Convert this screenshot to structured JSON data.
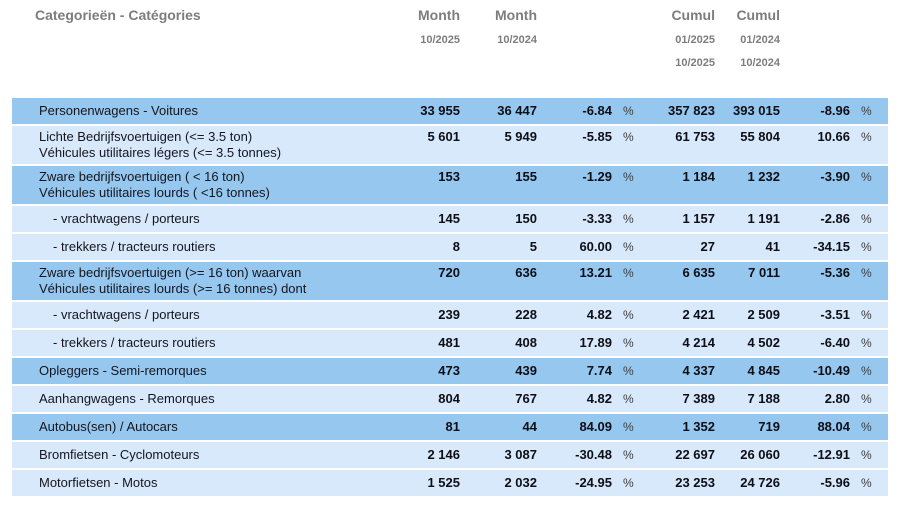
{
  "header": {
    "category_label": "Categorieën - Catégories",
    "columns": [
      {
        "title": "Month",
        "dates": [
          "10/2025"
        ]
      },
      {
        "title": "Month",
        "dates": [
          "10/2024"
        ]
      },
      {
        "title": "Cumul",
        "dates": [
          "01/2025",
          "10/2025"
        ]
      },
      {
        "title": "Cumul",
        "dates": [
          "01/2024",
          "10/2024"
        ]
      }
    ]
  },
  "percent_sign": "%",
  "colors": {
    "row_dark": "#96c7ef",
    "row_light": "#d8e9fb",
    "header_text": "#7d7d7d",
    "body_text": "#15151d"
  },
  "rows": [
    {
      "label1": "Personenwagens - Voitures",
      "label2": "",
      "indent": false,
      "shade": "dark",
      "month_cur": "33 955",
      "month_prev": "36 447",
      "month_pct": "-6.84",
      "cumul_cur": "357 823",
      "cumul_prev": "393 015",
      "cumul_pct": "-8.96"
    },
    {
      "label1": "Lichte Bedrijfsvoertuigen (<= 3.5 ton)",
      "label2": "Véhicules utilitaires légers (<= 3.5 tonnes)",
      "indent": false,
      "shade": "light",
      "month_cur": "5 601",
      "month_prev": "5 949",
      "month_pct": "-5.85",
      "cumul_cur": "61 753",
      "cumul_prev": "55 804",
      "cumul_pct": "10.66"
    },
    {
      "label1": "Zware bedrijfsvoertuigen ( < 16 ton)",
      "label2": "Véhicules utilitaires lourds ( <16 tonnes)",
      "indent": false,
      "shade": "dark",
      "month_cur": "153",
      "month_prev": "155",
      "month_pct": "-1.29",
      "cumul_cur": "1 184",
      "cumul_prev": "1 232",
      "cumul_pct": "-3.90"
    },
    {
      "label1": "- vrachtwagens / porteurs",
      "label2": "",
      "indent": true,
      "shade": "light",
      "month_cur": "145",
      "month_prev": "150",
      "month_pct": "-3.33",
      "cumul_cur": "1 157",
      "cumul_prev": "1 191",
      "cumul_pct": "-2.86"
    },
    {
      "label1": "- trekkers / tracteurs routiers",
      "label2": "",
      "indent": true,
      "shade": "light",
      "month_cur": "8",
      "month_prev": "5",
      "month_pct": "60.00",
      "cumul_cur": "27",
      "cumul_prev": "41",
      "cumul_pct": "-34.15"
    },
    {
      "label1": "Zware bedrijfsvoertuigen (>= 16 ton) waarvan",
      "label2": "Véhicules utilitaires lourds (>= 16 tonnes) dont",
      "indent": false,
      "shade": "dark",
      "month_cur": "720",
      "month_prev": "636",
      "month_pct": "13.21",
      "cumul_cur": "6 635",
      "cumul_prev": "7 011",
      "cumul_pct": "-5.36"
    },
    {
      "label1": "- vrachtwagens / porteurs",
      "label2": "",
      "indent": true,
      "shade": "light",
      "month_cur": "239",
      "month_prev": "228",
      "month_pct": "4.82",
      "cumul_cur": "2 421",
      "cumul_prev": "2 509",
      "cumul_pct": "-3.51"
    },
    {
      "label1": "- trekkers / tracteurs routiers",
      "label2": "",
      "indent": true,
      "shade": "light",
      "month_cur": "481",
      "month_prev": "408",
      "month_pct": "17.89",
      "cumul_cur": "4 214",
      "cumul_prev": "4 502",
      "cumul_pct": "-6.40"
    },
    {
      "label1": "Opleggers - Semi-remorques",
      "label2": "",
      "indent": false,
      "shade": "dark",
      "month_cur": "473",
      "month_prev": "439",
      "month_pct": "7.74",
      "cumul_cur": "4 337",
      "cumul_prev": "4 845",
      "cumul_pct": "-10.49"
    },
    {
      "label1": "Aanhangwagens - Remorques",
      "label2": "",
      "indent": false,
      "shade": "light",
      "month_cur": "804",
      "month_prev": "767",
      "month_pct": "4.82",
      "cumul_cur": "7 389",
      "cumul_prev": "7 188",
      "cumul_pct": "2.80"
    },
    {
      "label1": "Autobus(sen) / Autocars",
      "label2": "",
      "indent": false,
      "shade": "dark",
      "month_cur": "81",
      "month_prev": "44",
      "month_pct": "84.09",
      "cumul_cur": "1 352",
      "cumul_prev": "719",
      "cumul_pct": "88.04"
    },
    {
      "label1": "Bromfietsen - Cyclomoteurs",
      "label2": "",
      "indent": false,
      "shade": "light",
      "month_cur": "2 146",
      "month_prev": "3 087",
      "month_pct": "-30.48",
      "cumul_cur": "22 697",
      "cumul_prev": "26 060",
      "cumul_pct": "-12.91"
    },
    {
      "label1": "Motorfietsen - Motos",
      "label2": "",
      "indent": false,
      "shade": "light",
      "month_cur": "1 525",
      "month_prev": "2 032",
      "month_pct": "-24.95",
      "cumul_cur": "23 253",
      "cumul_prev": "24 726",
      "cumul_pct": "-5.96"
    }
  ]
}
